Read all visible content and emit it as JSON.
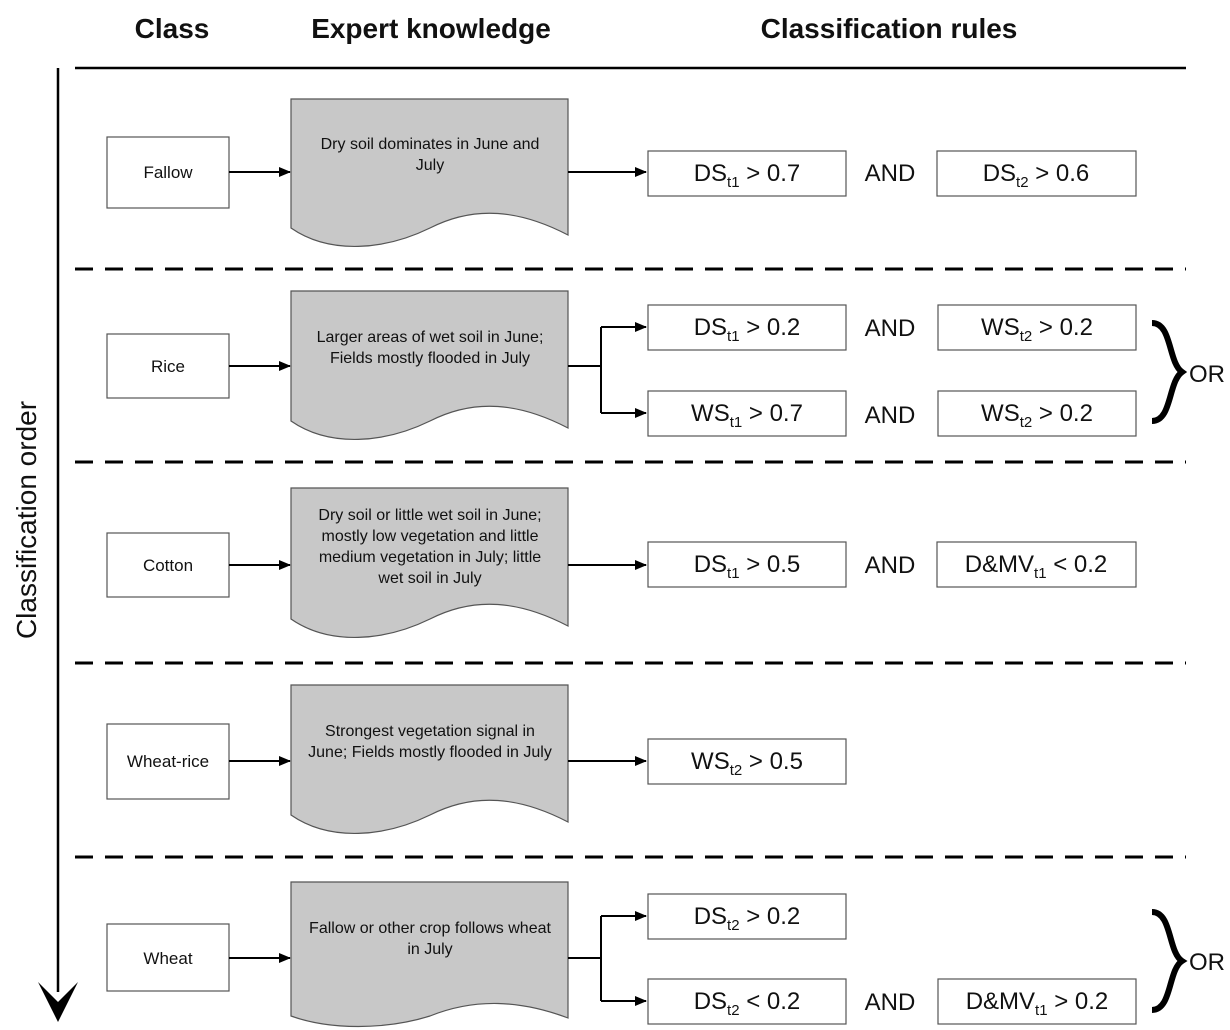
{
  "headers": {
    "class": "Class",
    "expert": "Expert knowledge",
    "rules": "Classification rules"
  },
  "axis_label": "Classification order",
  "rows": [
    {
      "class": "Fallow",
      "expert": [
        "Dry soil dominates in June and",
        "July"
      ],
      "rules": [
        [
          {
            "base": "DS",
            "sub": "t1",
            "rest": " > 0.7"
          },
          {
            "base": "DS",
            "sub": "t2",
            "rest": " > 0.6"
          }
        ]
      ]
    },
    {
      "class": "Rice",
      "expert": [
        "Larger areas of wet soil in June;",
        "Fields mostly flooded in July"
      ],
      "rules": [
        [
          {
            "base": "DS",
            "sub": "t1",
            "rest": " > 0.2"
          },
          {
            "base": "WS",
            "sub": "t2",
            "rest": " > 0.2"
          }
        ],
        [
          {
            "base": "WS",
            "sub": "t1",
            "rest": " > 0.7"
          },
          {
            "base": "WS",
            "sub": "t2",
            "rest": " > 0.2"
          }
        ]
      ]
    },
    {
      "class": "Cotton",
      "expert": [
        "Dry soil or little wet soil in June;",
        "mostly low vegetation and little",
        "medium vegetation in July; little",
        "wet soil in July"
      ],
      "rules": [
        [
          {
            "base": "DS",
            "sub": "t1",
            "rest": " > 0.5"
          },
          {
            "base": "D&MV",
            "sub": "t1",
            "rest": " < 0.2"
          }
        ]
      ]
    },
    {
      "class": "Wheat-rice",
      "expert": [
        "Strongest vegetation signal in",
        "June; Fields mostly flooded in July"
      ],
      "rules": [
        [
          {
            "base": "WS",
            "sub": "t2",
            "rest": " > 0.5"
          }
        ]
      ]
    },
    {
      "class": "Wheat",
      "expert": [
        "Fallow or other crop follows wheat",
        "in July"
      ],
      "rules": [
        [
          {
            "base": "DS",
            "sub": "t2",
            "rest": " > 0.2"
          }
        ],
        [
          {
            "base": "DS",
            "sub": "t2",
            "rest": " < 0.2"
          },
          {
            "base": "D&MV",
            "sub": "t1",
            "rest": " > 0.2"
          }
        ]
      ]
    }
  ],
  "and_label": "AND",
  "or_label": "OR"
}
